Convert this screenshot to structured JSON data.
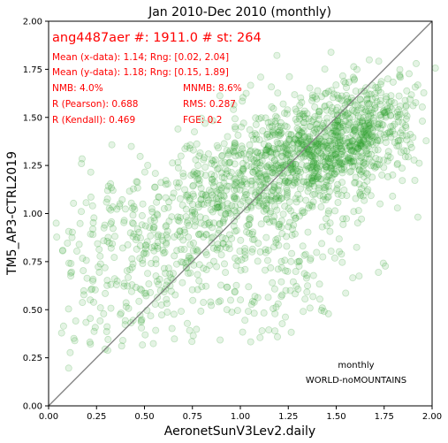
{
  "chart_data": {
    "type": "scatter",
    "title": "Jan 2010-Dec 2010 (monthly)",
    "xlabel": "AeronetSunV3Lev2.daily",
    "ylabel": "TM5_AP3-CTRL2019",
    "xlim": [
      0,
      2
    ],
    "ylim": [
      0,
      2
    ],
    "x_ticks": [
      "0.00",
      "0.25",
      "0.50",
      "0.75",
      "1.00",
      "1.25",
      "1.50",
      "1.75",
      "2.00"
    ],
    "y_ticks": [
      "0.00",
      "0.25",
      "0.50",
      "0.75",
      "1.00",
      "1.25",
      "1.50",
      "1.75",
      "2.00"
    ],
    "grid": false,
    "reference_line": "y = x",
    "marker_color": "#2ca02c",
    "reference_line_color": "#808080",
    "stats": {
      "header": "ang4487aer #: 1911.0 # st: 264",
      "mean_x": "Mean (x-data): 1.14; Rng: [0.02, 2.04]",
      "mean_y": "Mean (y-data): 1.18; Rng: [0.15, 1.89]",
      "nmb": "NMB: 4.0%",
      "mnmb": "MNMB: 8.6%",
      "r_pearson": "R (Pearson): 0.688",
      "rms": "RMS: 0.287",
      "r_kendall": "R (Kendall): 0.469",
      "fge": "FGE: 0.2"
    },
    "annotations": [
      "monthly",
      "WORLD-noMOUNTAINS"
    ],
    "clusters": [
      {
        "cx": 1.38,
        "cy": 1.3,
        "sx": 0.22,
        "sy": 0.17,
        "rho": 0.35,
        "n": 700
      },
      {
        "cx": 1.62,
        "cy": 1.42,
        "sx": 0.16,
        "sy": 0.14,
        "rho": 0.3,
        "n": 350
      },
      {
        "cx": 0.95,
        "cy": 1.12,
        "sx": 0.2,
        "sy": 0.2,
        "rho": 0.4,
        "n": 380
      },
      {
        "cx": 0.45,
        "cy": 0.78,
        "sx": 0.25,
        "sy": 0.25,
        "rho": 0.3,
        "n": 330
      },
      {
        "cx": 1.1,
        "cy": 0.65,
        "sx": 0.25,
        "sy": 0.18,
        "rho": 0.2,
        "n": 150
      }
    ]
  }
}
